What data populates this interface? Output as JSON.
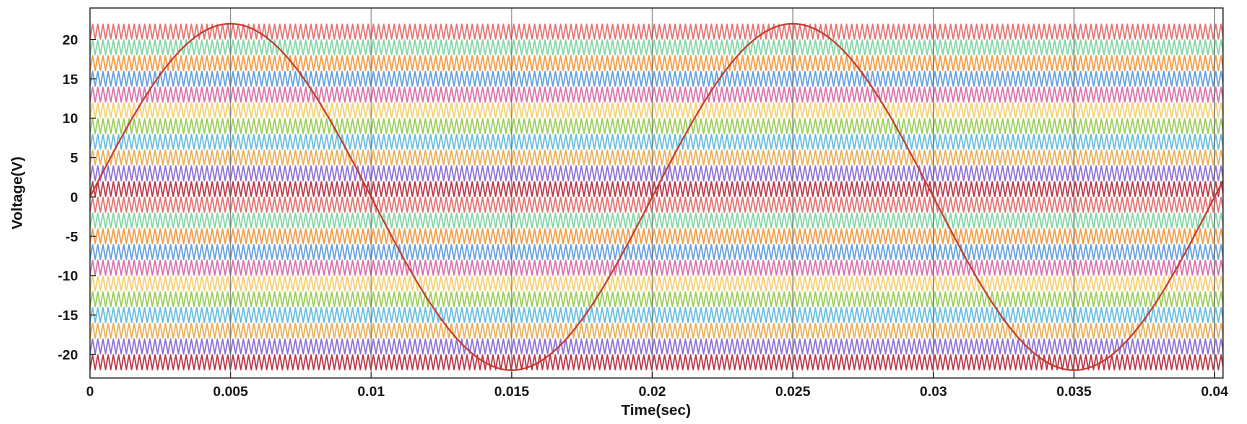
{
  "chart_data": {
    "type": "line",
    "title": "",
    "xlabel": "Time(sec)",
    "ylabel": "Voltage(V)",
    "xlim": [
      0,
      0.0403
    ],
    "ylim": [
      -23,
      24
    ],
    "grid": "vertical",
    "x_ticks": [
      0,
      0.005,
      0.01,
      0.015,
      0.02,
      0.025,
      0.03,
      0.035,
      0.04
    ],
    "x_tick_labels": [
      "0",
      "0.005",
      "0.01",
      "0.015",
      "0.02",
      "0.025",
      "0.03",
      "0.035",
      "0.04"
    ],
    "y_ticks": [
      20,
      15,
      10,
      5,
      0,
      -5,
      -10,
      -15,
      -20
    ],
    "y_tick_labels": [
      "20",
      "15",
      "10",
      "5",
      "0",
      "-5",
      "-10",
      "-15",
      "-20"
    ],
    "series": [
      {
        "role": "reference sine wave",
        "color": "#c0392b",
        "amplitude": 22,
        "frequency_hz": 50,
        "x": [
          0,
          0.0025,
          0.005,
          0.0075,
          0.01,
          0.0125,
          0.015,
          0.0175,
          0.02,
          0.0225,
          0.025,
          0.0275,
          0.03,
          0.0325,
          0.035,
          0.0375,
          0.04
        ],
        "values": [
          0,
          15.6,
          22,
          15.6,
          0,
          -15.6,
          -22,
          -15.6,
          0,
          15.6,
          22,
          15.6,
          0,
          -15.6,
          -22,
          -15.6,
          0
        ]
      },
      {
        "role": "carrier triangle waves (stacked level-shifted bands)",
        "band_count": 22,
        "band_range": [
          -22,
          22
        ],
        "band_height": 2,
        "colors": [
          "#b2182b",
          "#7b5bd0",
          "#e6a23c",
          "#4fb3d9",
          "#8cc63f",
          "#f4c95d",
          "#d45a9c",
          "#4a90d9",
          "#f28c28",
          "#6fcf97",
          "#e05a5a"
        ]
      }
    ]
  }
}
